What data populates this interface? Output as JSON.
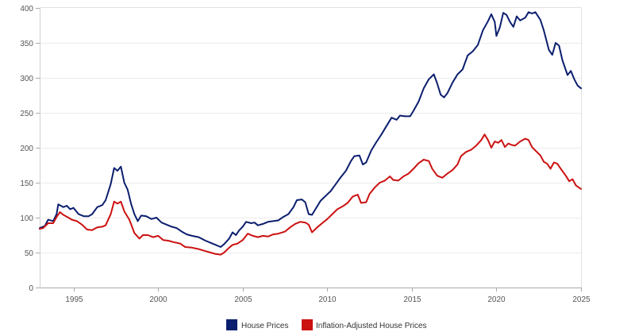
{
  "chart_data": {
    "type": "line",
    "title": "",
    "xlabel": "",
    "ylabel": "",
    "xlim": [
      1993.0,
      2025.0
    ],
    "ylim": [
      0,
      400
    ],
    "grid": "horizontal",
    "legend_position": "bottom",
    "x_ticks": [
      "1995",
      "2000",
      "2005",
      "2010",
      "2015",
      "2020",
      "2025"
    ],
    "y_ticks": [
      "0",
      "50",
      "100",
      "150",
      "200",
      "250",
      "300",
      "350",
      "400"
    ],
    "series": [
      {
        "name": "House Prices",
        "color": "#0b1e6e",
        "points": [
          [
            1993.0,
            85
          ],
          [
            1993.3,
            88
          ],
          [
            1993.5,
            97
          ],
          [
            1993.8,
            95
          ],
          [
            1994.0,
            105
          ],
          [
            1994.1,
            119
          ],
          [
            1994.4,
            115
          ],
          [
            1994.6,
            117
          ],
          [
            1994.8,
            112
          ],
          [
            1995.0,
            114
          ],
          [
            1995.3,
            105
          ],
          [
            1995.6,
            102
          ],
          [
            1995.9,
            102
          ],
          [
            1996.1,
            105
          ],
          [
            1996.4,
            115
          ],
          [
            1996.7,
            118
          ],
          [
            1996.9,
            125
          ],
          [
            1997.2,
            148
          ],
          [
            1997.4,
            171
          ],
          [
            1997.6,
            167
          ],
          [
            1997.8,
            173
          ],
          [
            1998.0,
            150
          ],
          [
            1998.2,
            140
          ],
          [
            1998.4,
            120
          ],
          [
            1998.6,
            105
          ],
          [
            1998.8,
            95
          ],
          [
            1999.0,
            103
          ],
          [
            1999.3,
            102
          ],
          [
            1999.6,
            98
          ],
          [
            1999.9,
            100
          ],
          [
            2000.2,
            93
          ],
          [
            2000.5,
            90
          ],
          [
            2000.8,
            87
          ],
          [
            2001.1,
            85
          ],
          [
            2001.4,
            80
          ],
          [
            2001.7,
            76
          ],
          [
            2002.0,
            74
          ],
          [
            2002.4,
            72
          ],
          [
            2002.8,
            67
          ],
          [
            2003.1,
            64
          ],
          [
            2003.4,
            61
          ],
          [
            2003.7,
            58
          ],
          [
            2003.9,
            62
          ],
          [
            2004.2,
            70
          ],
          [
            2004.4,
            79
          ],
          [
            2004.6,
            75
          ],
          [
            2004.8,
            82
          ],
          [
            2005.0,
            87
          ],
          [
            2005.2,
            94
          ],
          [
            2005.5,
            92
          ],
          [
            2005.7,
            93
          ],
          [
            2005.9,
            89
          ],
          [
            2006.2,
            91
          ],
          [
            2006.5,
            94
          ],
          [
            2006.8,
            95
          ],
          [
            2007.1,
            96
          ],
          [
            2007.4,
            101
          ],
          [
            2007.7,
            105
          ],
          [
            2008.0,
            115
          ],
          [
            2008.2,
            125
          ],
          [
            2008.5,
            126
          ],
          [
            2008.7,
            122
          ],
          [
            2008.9,
            105
          ],
          [
            2009.1,
            104
          ],
          [
            2009.3,
            112
          ],
          [
            2009.6,
            124
          ],
          [
            2009.9,
            131
          ],
          [
            2010.2,
            138
          ],
          [
            2010.5,
            148
          ],
          [
            2010.8,
            158
          ],
          [
            2011.1,
            167
          ],
          [
            2011.4,
            181
          ],
          [
            2011.6,
            188
          ],
          [
            2011.9,
            189
          ],
          [
            2012.1,
            176
          ],
          [
            2012.3,
            179
          ],
          [
            2012.6,
            196
          ],
          [
            2012.9,
            208
          ],
          [
            2013.2,
            219
          ],
          [
            2013.5,
            231
          ],
          [
            2013.8,
            243
          ],
          [
            2014.1,
            240
          ],
          [
            2014.3,
            246
          ],
          [
            2014.6,
            245
          ],
          [
            2014.9,
            245
          ],
          [
            2015.1,
            253
          ],
          [
            2015.4,
            266
          ],
          [
            2015.7,
            285
          ],
          [
            2016.0,
            298
          ],
          [
            2016.3,
            305
          ],
          [
            2016.5,
            292
          ],
          [
            2016.7,
            276
          ],
          [
            2016.9,
            272
          ],
          [
            2017.1,
            278
          ],
          [
            2017.4,
            293
          ],
          [
            2017.7,
            305
          ],
          [
            2018.0,
            312
          ],
          [
            2018.3,
            332
          ],
          [
            2018.6,
            338
          ],
          [
            2018.9,
            347
          ],
          [
            2019.2,
            368
          ],
          [
            2019.5,
            381
          ],
          [
            2019.7,
            391
          ],
          [
            2019.9,
            380
          ],
          [
            2020.0,
            360
          ],
          [
            2020.2,
            372
          ],
          [
            2020.4,
            393
          ],
          [
            2020.6,
            390
          ],
          [
            2020.8,
            380
          ],
          [
            2021.0,
            373
          ],
          [
            2021.2,
            388
          ],
          [
            2021.4,
            382
          ],
          [
            2021.7,
            386
          ],
          [
            2021.9,
            394
          ],
          [
            2022.1,
            392
          ],
          [
            2022.3,
            394
          ],
          [
            2022.6,
            383
          ],
          [
            2022.8,
            368
          ],
          [
            2023.1,
            340
          ],
          [
            2023.3,
            333
          ],
          [
            2023.5,
            350
          ],
          [
            2023.7,
            346
          ],
          [
            2023.9,
            325
          ],
          [
            2024.2,
            304
          ],
          [
            2024.4,
            310
          ],
          [
            2024.6,
            298
          ],
          [
            2024.8,
            289
          ],
          [
            2025.0,
            285
          ]
        ]
      },
      {
        "name": "Inflation-Adjusted House Prices",
        "color": "#cc1111",
        "points": [
          [
            1993.0,
            84
          ],
          [
            1993.2,
            85
          ],
          [
            1993.5,
            92
          ],
          [
            1993.8,
            92
          ],
          [
            1994.0,
            101
          ],
          [
            1994.2,
            108
          ],
          [
            1994.4,
            104
          ],
          [
            1994.7,
            100
          ],
          [
            1994.9,
            97
          ],
          [
            1995.2,
            95
          ],
          [
            1995.5,
            90
          ],
          [
            1995.8,
            83
          ],
          [
            1996.1,
            82
          ],
          [
            1996.4,
            86
          ],
          [
            1996.7,
            87
          ],
          [
            1996.9,
            89
          ],
          [
            1997.2,
            105
          ],
          [
            1997.4,
            123
          ],
          [
            1997.6,
            120
          ],
          [
            1997.8,
            123
          ],
          [
            1998.0,
            109
          ],
          [
            1998.3,
            97
          ],
          [
            1998.6,
            78
          ],
          [
            1998.9,
            70
          ],
          [
            1999.1,
            75
          ],
          [
            1999.4,
            75
          ],
          [
            1999.7,
            72
          ],
          [
            2000.0,
            74
          ],
          [
            2000.3,
            68
          ],
          [
            2000.6,
            67
          ],
          [
            2000.9,
            65
          ],
          [
            2001.3,
            63
          ],
          [
            2001.6,
            58
          ],
          [
            2002.0,
            57
          ],
          [
            2002.4,
            55
          ],
          [
            2002.8,
            52
          ],
          [
            2003.1,
            50
          ],
          [
            2003.4,
            48
          ],
          [
            2003.7,
            47
          ],
          [
            2003.9,
            50
          ],
          [
            2004.2,
            57
          ],
          [
            2004.4,
            61
          ],
          [
            2004.7,
            63
          ],
          [
            2005.0,
            68
          ],
          [
            2005.3,
            77
          ],
          [
            2005.6,
            74
          ],
          [
            2005.9,
            72
          ],
          [
            2006.2,
            74
          ],
          [
            2006.5,
            73
          ],
          [
            2006.8,
            76
          ],
          [
            2007.1,
            77
          ],
          [
            2007.5,
            80
          ],
          [
            2007.8,
            86
          ],
          [
            2008.1,
            91
          ],
          [
            2008.4,
            94
          ],
          [
            2008.7,
            93
          ],
          [
            2008.9,
            90
          ],
          [
            2009.1,
            79
          ],
          [
            2009.4,
            86
          ],
          [
            2009.7,
            92
          ],
          [
            2010.0,
            98
          ],
          [
            2010.3,
            105
          ],
          [
            2010.6,
            112
          ],
          [
            2010.9,
            116
          ],
          [
            2011.2,
            121
          ],
          [
            2011.5,
            130
          ],
          [
            2011.8,
            133
          ],
          [
            2012.0,
            121
          ],
          [
            2012.3,
            122
          ],
          [
            2012.5,
            134
          ],
          [
            2012.8,
            143
          ],
          [
            2013.1,
            150
          ],
          [
            2013.4,
            153
          ],
          [
            2013.7,
            159
          ],
          [
            2013.9,
            154
          ],
          [
            2014.2,
            153
          ],
          [
            2014.5,
            159
          ],
          [
            2014.8,
            163
          ],
          [
            2015.1,
            170
          ],
          [
            2015.4,
            178
          ],
          [
            2015.7,
            183
          ],
          [
            2016.0,
            181
          ],
          [
            2016.2,
            170
          ],
          [
            2016.5,
            160
          ],
          [
            2016.8,
            157
          ],
          [
            2017.1,
            163
          ],
          [
            2017.4,
            168
          ],
          [
            2017.7,
            176
          ],
          [
            2017.9,
            188
          ],
          [
            2018.2,
            194
          ],
          [
            2018.5,
            197
          ],
          [
            2018.8,
            203
          ],
          [
            2019.1,
            211
          ],
          [
            2019.3,
            219
          ],
          [
            2019.5,
            211
          ],
          [
            2019.7,
            200
          ],
          [
            2019.9,
            209
          ],
          [
            2020.1,
            207
          ],
          [
            2020.3,
            211
          ],
          [
            2020.5,
            201
          ],
          [
            2020.7,
            206
          ],
          [
            2020.9,
            204
          ],
          [
            2021.1,
            203
          ],
          [
            2021.4,
            209
          ],
          [
            2021.7,
            213
          ],
          [
            2021.9,
            211
          ],
          [
            2022.1,
            201
          ],
          [
            2022.3,
            196
          ],
          [
            2022.6,
            189
          ],
          [
            2022.8,
            180
          ],
          [
            2023.0,
            177
          ],
          [
            2023.2,
            170
          ],
          [
            2023.4,
            179
          ],
          [
            2023.6,
            177
          ],
          [
            2023.8,
            170
          ],
          [
            2024.1,
            160
          ],
          [
            2024.3,
            152
          ],
          [
            2024.5,
            155
          ],
          [
            2024.7,
            146
          ],
          [
            2025.0,
            141
          ]
        ]
      }
    ]
  }
}
